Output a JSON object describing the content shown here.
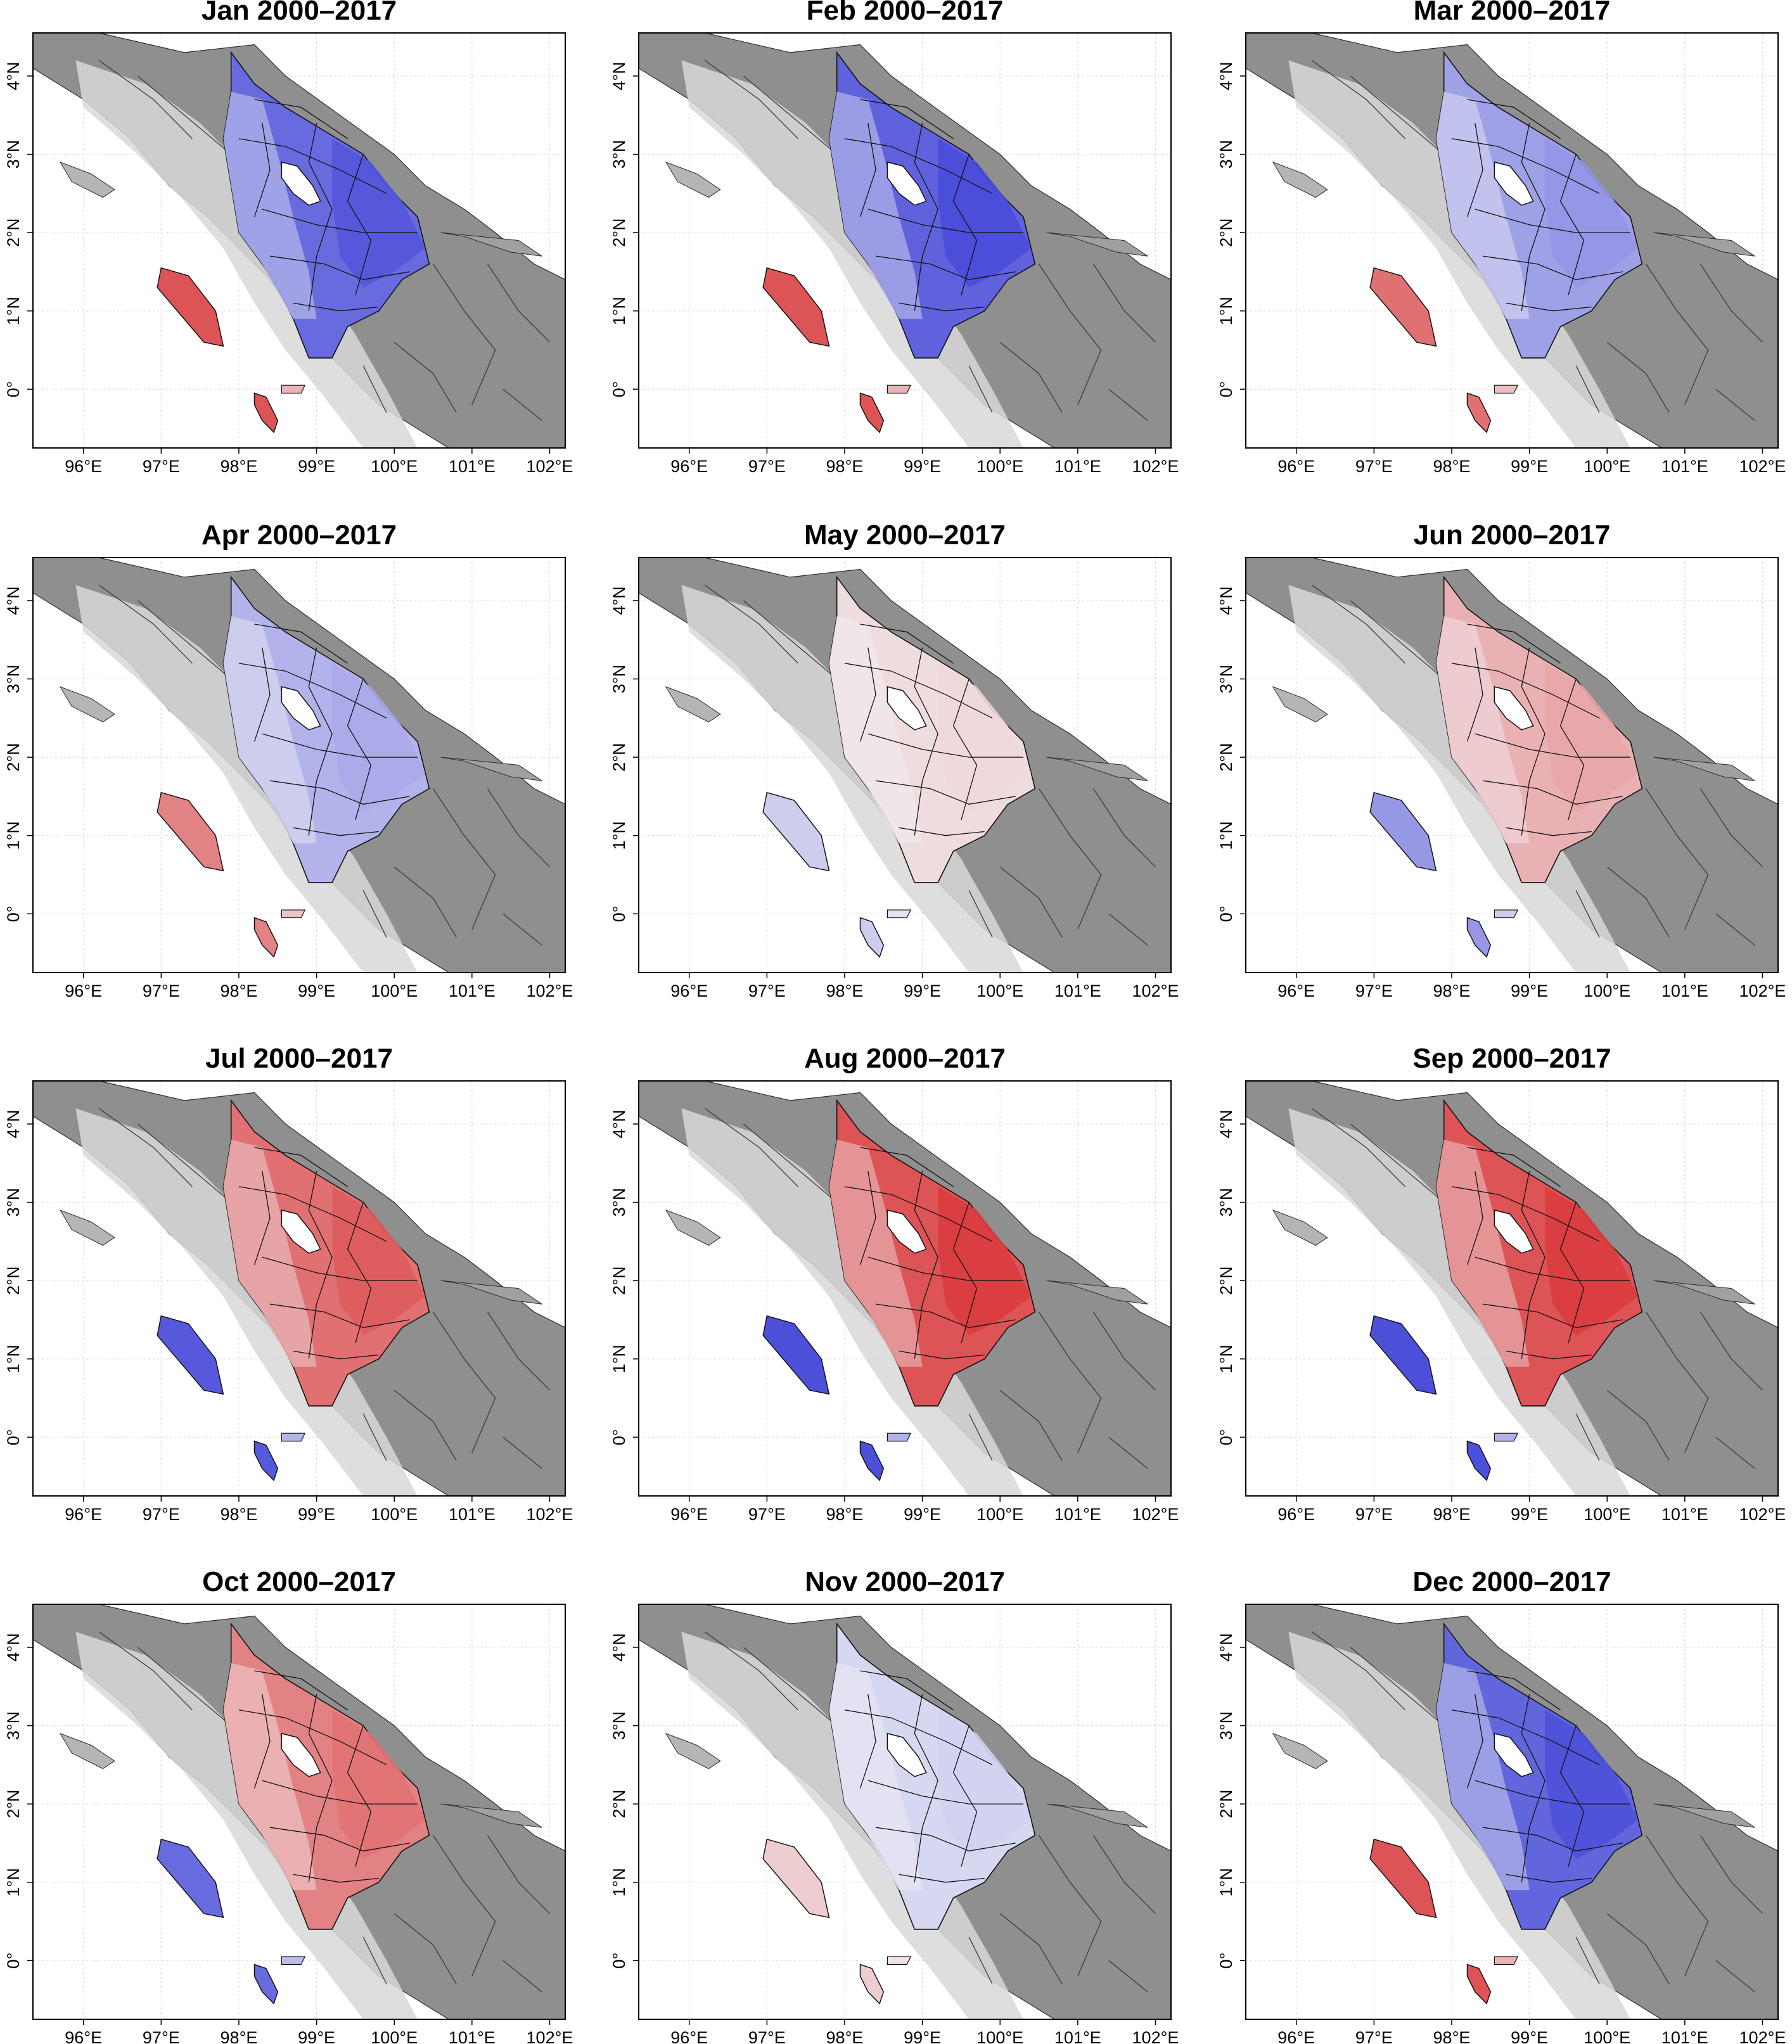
{
  "figure": {
    "x_ticks": [
      "96°E",
      "97°E",
      "98°E",
      "99°E",
      "100°E",
      "101°E",
      "102°E"
    ],
    "y_ticks": [
      "0°",
      "1°N",
      "2°N",
      "3°N",
      "4°N"
    ]
  },
  "colors": {
    "sea": "#ffffff",
    "land_base": "#8f8f8f",
    "highland": "#d8d8d8",
    "border": "#2b2b2b",
    "blue_strong": "#3a3ed6",
    "red_strong": "#d9383a"
  },
  "panels": [
    {
      "title": "Jan 2000–2017",
      "main": {
        "tone": "blue",
        "level": 0.75
      },
      "island": {
        "tone": "red",
        "level": 0.85
      }
    },
    {
      "title": "Feb 2000–2017",
      "main": {
        "tone": "blue",
        "level": 0.8
      },
      "island": {
        "tone": "red",
        "level": 0.85
      }
    },
    {
      "title": "Mar 2000–2017",
      "main": {
        "tone": "blue",
        "level": 0.45
      },
      "island": {
        "tone": "red",
        "level": 0.7
      }
    },
    {
      "title": "Apr 2000–2017",
      "main": {
        "tone": "blue",
        "level": 0.35
      },
      "island": {
        "tone": "red",
        "level": 0.6
      }
    },
    {
      "title": "May 2000–2017",
      "main": {
        "tone": "red",
        "level": 0.12
      },
      "island": {
        "tone": "blue",
        "level": 0.2
      }
    },
    {
      "title": "Jun 2000–2017",
      "main": {
        "tone": "red",
        "level": 0.35
      },
      "island": {
        "tone": "blue",
        "level": 0.5
      }
    },
    {
      "title": "Jul 2000–2017",
      "main": {
        "tone": "red",
        "level": 0.7
      },
      "island": {
        "tone": "blue",
        "level": 0.85
      }
    },
    {
      "title": "Aug 2000–2017",
      "main": {
        "tone": "red",
        "level": 0.85
      },
      "island": {
        "tone": "blue",
        "level": 0.9
      }
    },
    {
      "title": "Sep 2000–2017",
      "main": {
        "tone": "red",
        "level": 0.85
      },
      "island": {
        "tone": "blue",
        "level": 0.9
      }
    },
    {
      "title": "Oct 2000–2017",
      "main": {
        "tone": "red",
        "level": 0.6
      },
      "island": {
        "tone": "blue",
        "level": 0.75
      }
    },
    {
      "title": "Nov 2000–2017",
      "main": {
        "tone": "blue",
        "level": 0.15
      },
      "island": {
        "tone": "red",
        "level": 0.2
      }
    },
    {
      "title": "Dec 2000–2017",
      "main": {
        "tone": "blue",
        "level": 0.78
      },
      "island": {
        "tone": "red",
        "level": 0.85
      }
    }
  ]
}
